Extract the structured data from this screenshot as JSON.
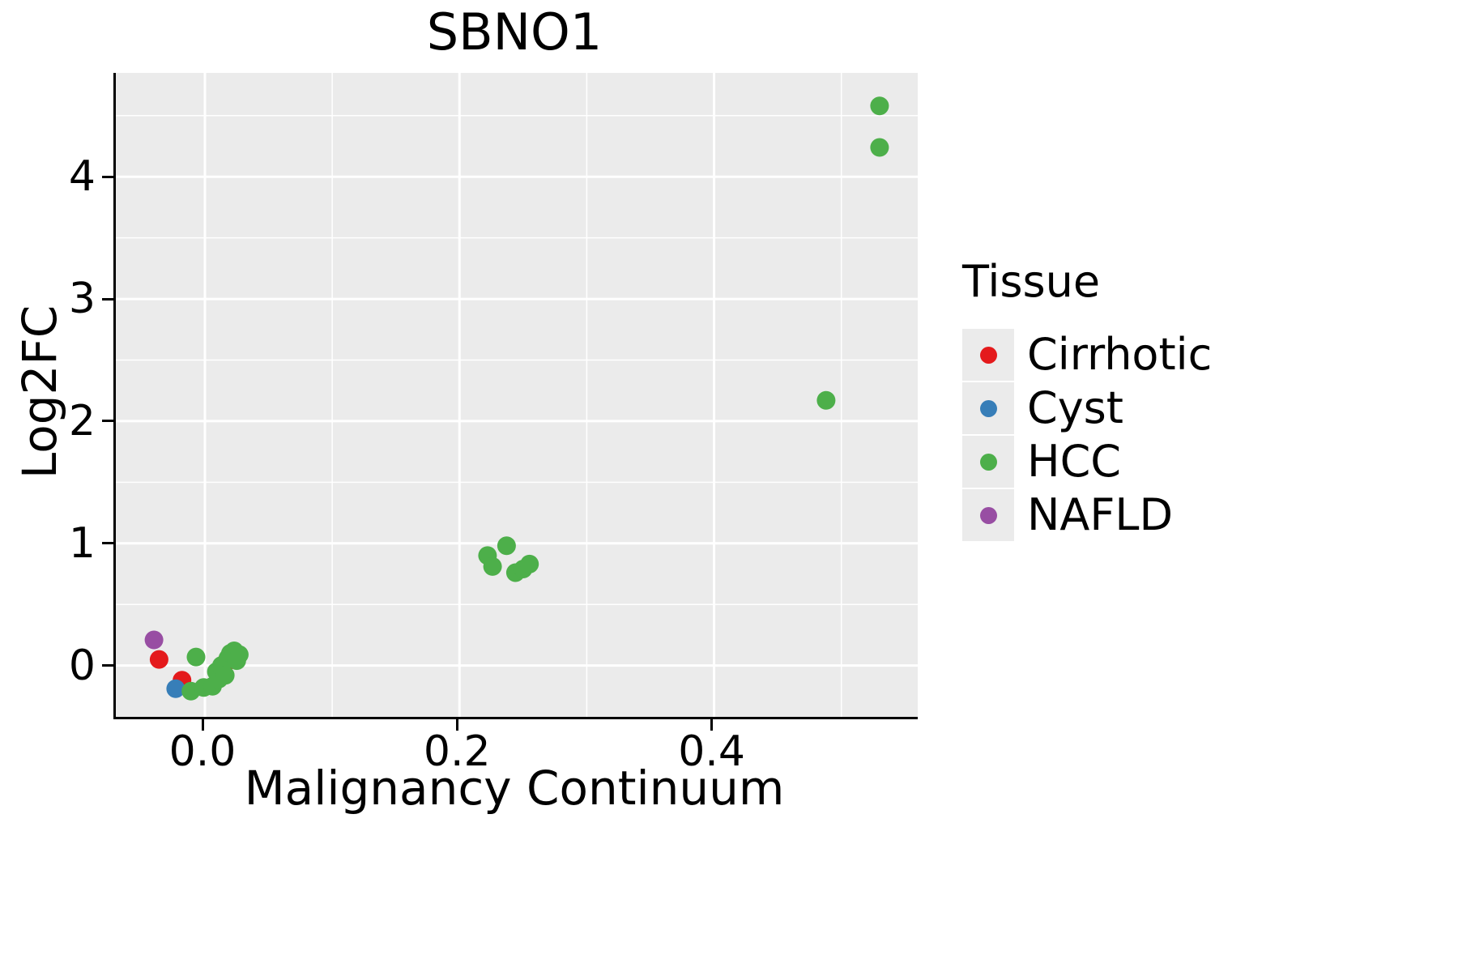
{
  "chart_data": {
    "type": "scatter",
    "title": "SBNO1",
    "xlabel": "Malignancy Continuum",
    "ylabel": "Log2FC",
    "xlim": [
      -0.07,
      0.56
    ],
    "ylim": [
      -0.42,
      4.85
    ],
    "x_major_ticks": [
      0.0,
      0.2,
      0.4
    ],
    "x_tick_labels": [
      "0.0",
      "0.2",
      "0.4"
    ],
    "x_minor_ticks": [
      0.1,
      0.3,
      0.5
    ],
    "y_major_ticks": [
      0,
      1,
      2,
      3,
      4
    ],
    "y_tick_labels": [
      "0",
      "1",
      "2",
      "3",
      "4"
    ],
    "y_minor_ticks": [
      0.5,
      1.5,
      2.5,
      3.5,
      4.5
    ],
    "grid": true,
    "panel_bg": "#ebebeb",
    "grid_color": "#ffffff",
    "legend": {
      "title": "Tissue",
      "position": "right"
    },
    "series": [
      {
        "name": "Cirrhotic",
        "color": "#e41a1c",
        "points": [
          [
            -0.036,
            0.05
          ],
          [
            -0.018,
            -0.12
          ],
          [
            0.016,
            0.02
          ]
        ]
      },
      {
        "name": "Cyst",
        "color": "#377eb8",
        "points": [
          [
            -0.023,
            -0.19
          ]
        ]
      },
      {
        "name": "HCC",
        "color": "#4daf4a",
        "points": [
          [
            0.53,
            4.58
          ],
          [
            0.53,
            4.24
          ],
          [
            0.488,
            2.17
          ],
          [
            0.222,
            0.9
          ],
          [
            0.226,
            0.81
          ],
          [
            0.237,
            0.98
          ],
          [
            0.244,
            0.76
          ],
          [
            0.25,
            0.79
          ],
          [
            0.255,
            0.83
          ],
          [
            -0.007,
            0.07
          ],
          [
            -0.011,
            -0.21
          ],
          [
            -0.001,
            -0.18
          ],
          [
            0.006,
            -0.17
          ],
          [
            0.009,
            -0.05
          ],
          [
            0.011,
            -0.11
          ],
          [
            0.013,
            0.0
          ],
          [
            0.016,
            -0.08
          ],
          [
            0.018,
            0.06
          ],
          [
            0.02,
            0.1
          ],
          [
            0.023,
            0.12
          ],
          [
            0.025,
            0.04
          ],
          [
            0.027,
            0.09
          ]
        ]
      },
      {
        "name": "NAFLD",
        "color": "#984ea3",
        "points": [
          [
            -0.04,
            0.21
          ]
        ]
      }
    ]
  }
}
